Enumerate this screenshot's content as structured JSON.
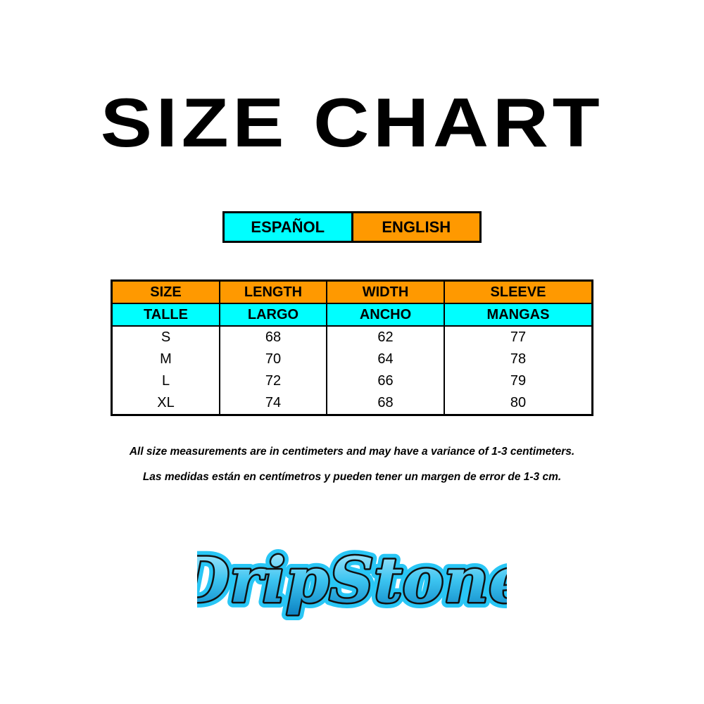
{
  "title": "SIZE CHART",
  "languages": {
    "spanish": "ESPAÑOL",
    "english": "ENGLISH"
  },
  "colors": {
    "orange": "#ff9900",
    "cyan": "#00ffff"
  },
  "table": {
    "headers_en": [
      "SIZE",
      "LENGTH",
      "WIDTH",
      "SLEEVE"
    ],
    "headers_es": [
      "TALLE",
      "LARGO",
      "ANCHO",
      "MANGAS"
    ],
    "rows": [
      [
        "S",
        "68",
        "62",
        "77"
      ],
      [
        "M",
        "70",
        "64",
        "78"
      ],
      [
        "L",
        "72",
        "66",
        "79"
      ],
      [
        "XL",
        "74",
        "68",
        "80"
      ]
    ]
  },
  "notes": {
    "english": "All size measurements are in centimeters and may have a variance of 1-3 centimeters.",
    "spanish": "Las medidas están en centímetros y pueden tener un margen de error de 1-3 cm."
  },
  "logo": {
    "text": "DripStone"
  }
}
